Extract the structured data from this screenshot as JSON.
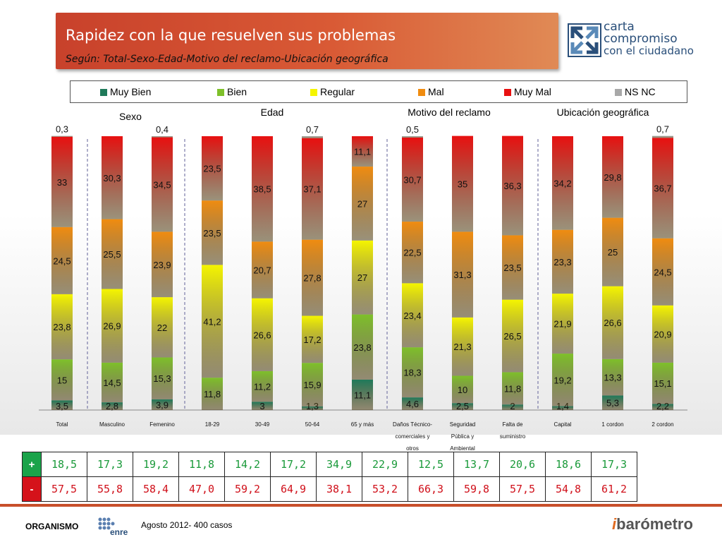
{
  "header": {
    "title": "Rapidez con la que resuelven sus problemas",
    "subtitle": "Según: Total-Sexo-Edad-Motivo del reclamo-Ubicación geográfica"
  },
  "logo": {
    "line1": "carta",
    "line2": "compromiso",
    "line3": "con el ciudadano"
  },
  "chart_data": {
    "type": "bar",
    "stacked": true,
    "categories": [
      "Total",
      "Masculino",
      "Femenino",
      "18-29",
      "30-49",
      "50-64",
      "65 y más",
      "Daños Técnico-comerciales y otros",
      "Seguridad Pública y Ambiental",
      "Falta de suministro",
      "Capital",
      "1 cordon",
      "2 cordon"
    ],
    "category_lines": [
      [
        "Total"
      ],
      [
        "Masculino"
      ],
      [
        "Femenino"
      ],
      [
        "18-29"
      ],
      [
        "30-49"
      ],
      [
        "50-64"
      ],
      [
        "65 y más"
      ],
      [
        "Daños Técnico-",
        "comerciales y",
        "otros"
      ],
      [
        "Seguridad",
        "Pública y",
        "Ambiental"
      ],
      [
        "Falta de",
        "suministro"
      ],
      [
        "Capital"
      ],
      [
        "1 cordon"
      ],
      [
        "2 cordon"
      ]
    ],
    "series": [
      {
        "name": "Muy Bien",
        "color": "#1f7a5a",
        "values": [
          3.5,
          2.8,
          3.9,
          null,
          3,
          1.3,
          11.1,
          4.6,
          2.5,
          2,
          1.4,
          5.3,
          2.2
        ]
      },
      {
        "name": "Bien",
        "color": "#7ec02a",
        "values": [
          15,
          14.5,
          15.3,
          11.8,
          11.2,
          15.9,
          23.8,
          18.3,
          10,
          11.8,
          19.2,
          13.3,
          15.1
        ]
      },
      {
        "name": "Regular",
        "color": "#f5f500",
        "values": [
          23.8,
          26.9,
          22,
          41.2,
          26.6,
          17.2,
          27,
          23.4,
          21.3,
          26.5,
          21.9,
          26.6,
          20.9
        ]
      },
      {
        "name": "Mal",
        "color": "#f08c10",
        "values": [
          24.5,
          25.5,
          23.9,
          23.5,
          20.7,
          27.8,
          27,
          22.5,
          31.3,
          23.5,
          23.3,
          25,
          24.5
        ]
      },
      {
        "name": "Muy Mal",
        "color": "#e81010",
        "values": [
          33,
          30.3,
          34.5,
          23.5,
          38.5,
          37.1,
          11.1,
          30.7,
          35,
          36.3,
          34.2,
          29.8,
          36.7
        ]
      },
      {
        "name": "NS NC",
        "color": "#a8a8a8",
        "values": [
          0.3,
          null,
          0.4,
          null,
          null,
          0.7,
          null,
          0.5,
          null,
          null,
          null,
          null,
          0.7
        ]
      }
    ],
    "group_labels": [
      "Sexo",
      "Edad",
      "Motivo del reclamo",
      "Ubicación geográfica"
    ],
    "ylim": [
      0,
      100
    ],
    "legend_position": "top"
  },
  "summary_table": {
    "plus_label": "+",
    "minus_label": "-",
    "plus": [
      "18,5",
      "17,3",
      "19,2",
      "11,8",
      "14,2",
      "17,2",
      "34,9",
      "22,9",
      "12,5",
      "13,7",
      "20,6",
      "18,6",
      "17,3"
    ],
    "minus": [
      "57,5",
      "55,8",
      "58,4",
      "47,0",
      "59,2",
      "64,9",
      "38,1",
      "53,2",
      "66,3",
      "59,8",
      "57,5",
      "54,8",
      "61,2"
    ]
  },
  "footer": {
    "org_label": "ORGANISMO",
    "enre": "enre",
    "date": "Agosto 2012- 400 casos",
    "brand": "barómetro"
  }
}
